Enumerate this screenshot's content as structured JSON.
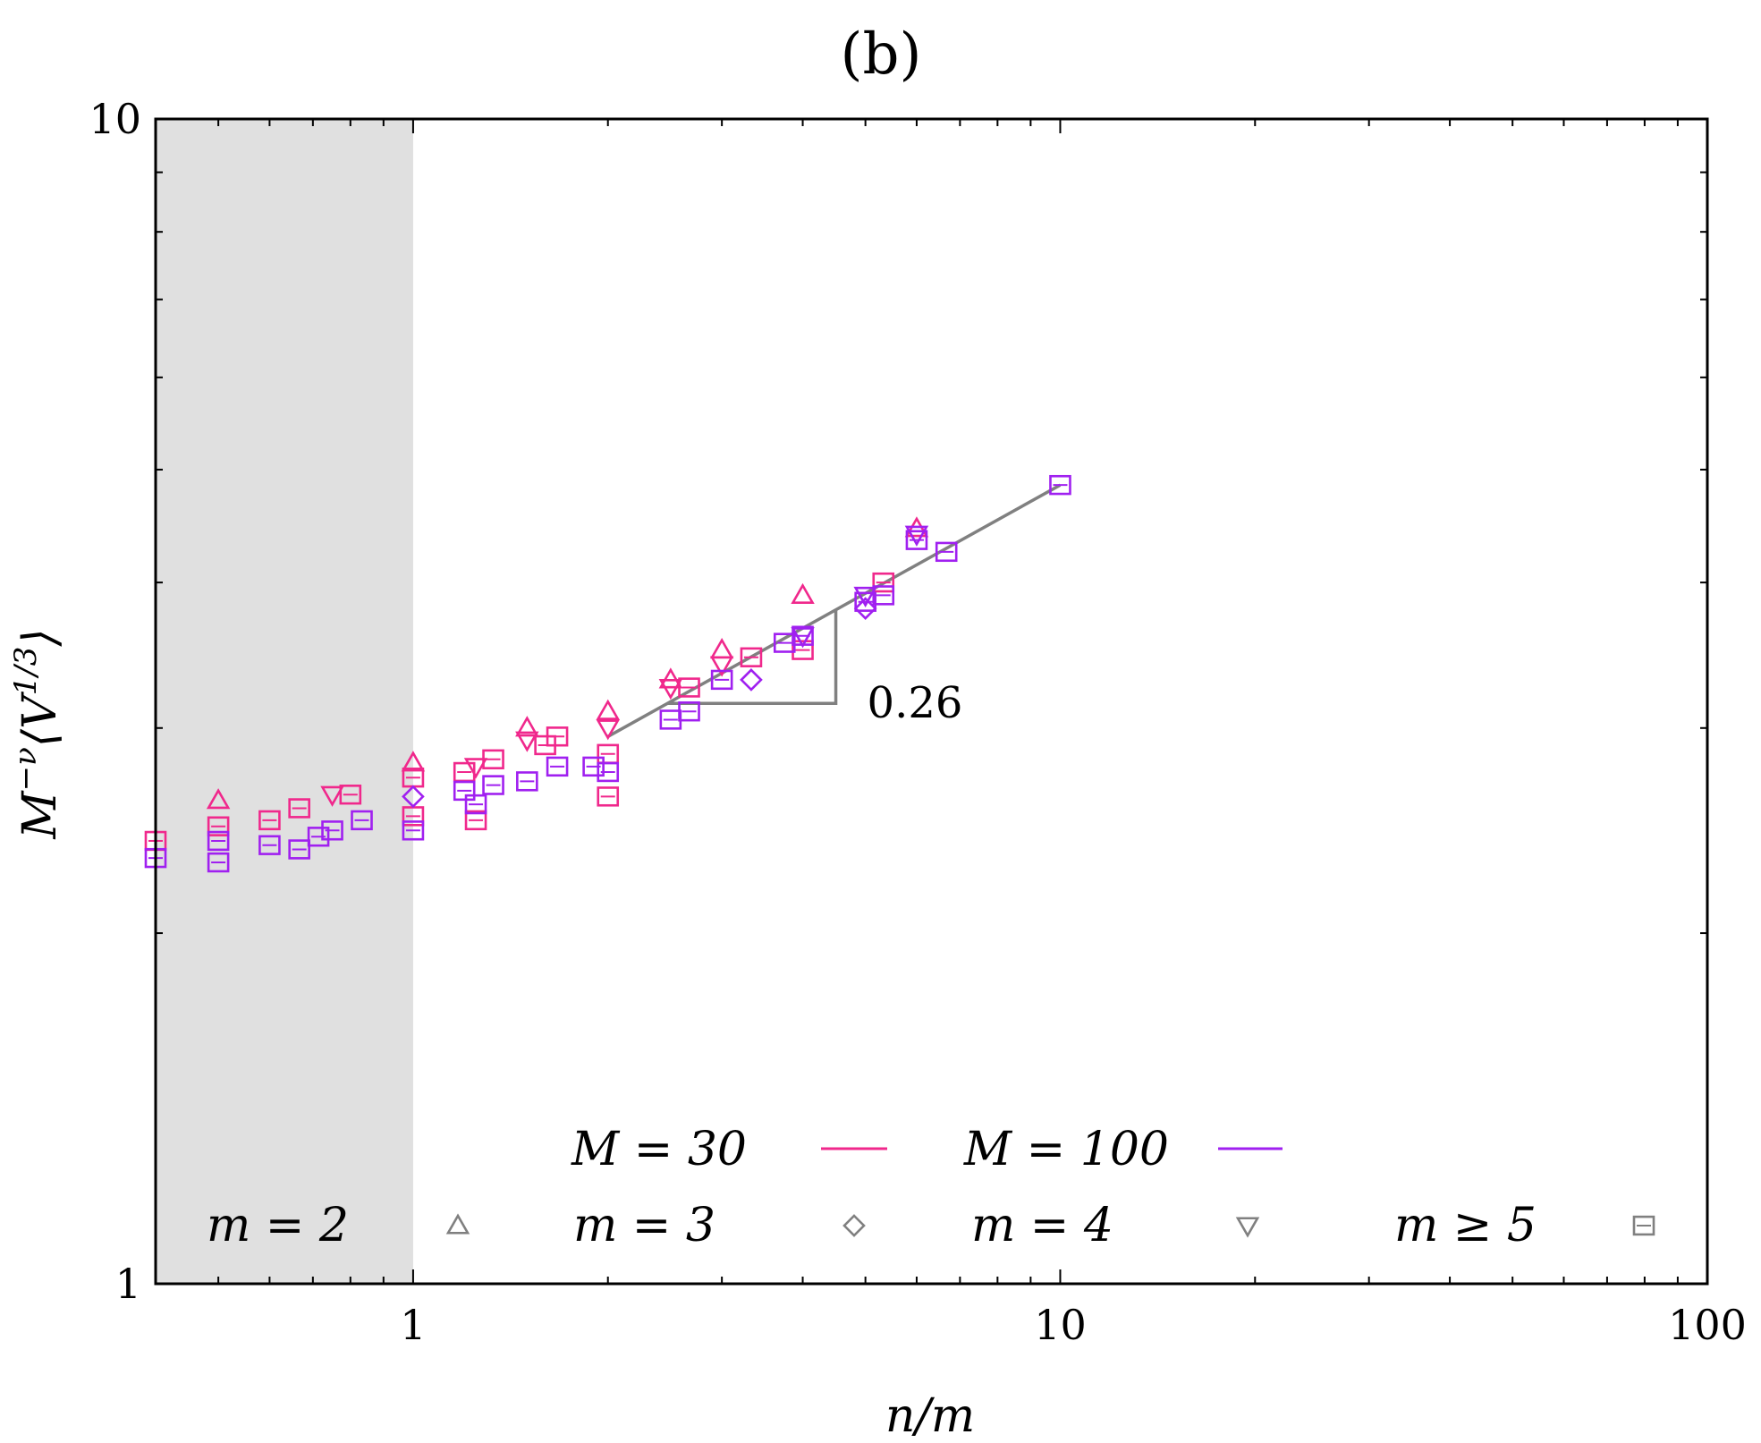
{
  "chart_data": {
    "type": "scatter",
    "panel_label": "(b)",
    "xlabel": "n/m",
    "ylabel": "M^{-ν}⟨V^{1/3}⟩",
    "ylabel_parts": {
      "base": "M",
      "exp": "−ν",
      "open": "⟨V",
      "inner_exp": "1/3",
      "close": "⟩"
    },
    "x_scale": "log",
    "y_scale": "log",
    "xlim": [
      0.4,
      100
    ],
    "ylim": [
      1,
      10
    ],
    "x_tick_labels": [
      {
        "value": 1,
        "label": "1"
      },
      {
        "value": 10,
        "label": "10"
      },
      {
        "value": 100,
        "label": "100"
      }
    ],
    "y_tick_labels": [
      {
        "value": 1,
        "label": "1"
      },
      {
        "value": 10,
        "label": "10"
      }
    ],
    "shaded_region": {
      "x": [
        0.4,
        1
      ],
      "color": "#e0e0e0"
    },
    "colors": {
      "M30": "#f0288c",
      "M100": "#a020f0",
      "fit": "#808080",
      "frame": "#000000"
    },
    "legend": {
      "line_entries": [
        {
          "label": "M = 30",
          "color": "#f0288c"
        },
        {
          "label": "M = 100",
          "color": "#a020f0"
        }
      ],
      "marker_entries": [
        {
          "label": "m = 2",
          "marker": "triangle-up"
        },
        {
          "label": "m = 3",
          "marker": "diamond"
        },
        {
          "label": "m = 4",
          "marker": "triangle-down"
        },
        {
          "label": "m ≥ 5",
          "marker": "square"
        }
      ]
    },
    "fit_line": {
      "from": [
        2.0,
        2.95
      ],
      "to": [
        10.0,
        4.85
      ],
      "slope_label": "0.26",
      "triangle_corner": [
        4.5,
        3.15
      ],
      "triangle_top": [
        4.5,
        3.75
      ]
    },
    "series": [
      {
        "name": "M = 30",
        "color": "#f0288c",
        "points": [
          {
            "x": 0.5,
            "y": 2.6,
            "marker": "triangle-up"
          },
          {
            "x": 1.0,
            "y": 2.8,
            "marker": "triangle-up"
          },
          {
            "x": 1.5,
            "y": 3.0,
            "marker": "triangle-up"
          },
          {
            "x": 2.0,
            "y": 3.1,
            "marker": "triangle-up"
          },
          {
            "x": 2.5,
            "y": 3.3,
            "marker": "triangle-up"
          },
          {
            "x": 3.0,
            "y": 3.5,
            "marker": "triangle-up"
          },
          {
            "x": 4.0,
            "y": 3.9,
            "marker": "triangle-up"
          },
          {
            "x": 6.0,
            "y": 4.45,
            "marker": "triangle-up"
          },
          {
            "x": 0.75,
            "y": 2.63,
            "marker": "triangle-down"
          },
          {
            "x": 1.25,
            "y": 2.78,
            "marker": "triangle-down"
          },
          {
            "x": 1.5,
            "y": 2.93,
            "marker": "triangle-down"
          },
          {
            "x": 2.0,
            "y": 3.0,
            "marker": "triangle-down"
          },
          {
            "x": 2.5,
            "y": 3.25,
            "marker": "triangle-down"
          },
          {
            "x": 3.0,
            "y": 3.4,
            "marker": "triangle-down"
          },
          {
            "x": 0.4,
            "y": 2.4,
            "marker": "square"
          },
          {
            "x": 0.5,
            "y": 2.47,
            "marker": "square"
          },
          {
            "x": 0.6,
            "y": 2.5,
            "marker": "square"
          },
          {
            "x": 0.667,
            "y": 2.56,
            "marker": "square"
          },
          {
            "x": 0.8,
            "y": 2.63,
            "marker": "square"
          },
          {
            "x": 1.0,
            "y": 2.72,
            "marker": "square"
          },
          {
            "x": 1.0,
            "y": 2.52,
            "marker": "square"
          },
          {
            "x": 1.2,
            "y": 2.75,
            "marker": "square"
          },
          {
            "x": 1.25,
            "y": 2.5,
            "marker": "square"
          },
          {
            "x": 1.33,
            "y": 2.82,
            "marker": "square"
          },
          {
            "x": 1.6,
            "y": 2.9,
            "marker": "square"
          },
          {
            "x": 1.67,
            "y": 2.95,
            "marker": "square"
          },
          {
            "x": 2.0,
            "y": 2.62,
            "marker": "square"
          },
          {
            "x": 2.0,
            "y": 2.85,
            "marker": "square"
          },
          {
            "x": 2.67,
            "y": 3.25,
            "marker": "square"
          },
          {
            "x": 3.33,
            "y": 3.45,
            "marker": "square"
          },
          {
            "x": 4.0,
            "y": 3.5,
            "marker": "square"
          },
          {
            "x": 5.33,
            "y": 4.0,
            "marker": "square"
          }
        ]
      },
      {
        "name": "M = 100",
        "color": "#a020f0",
        "points": [
          {
            "x": 1.0,
            "y": 2.62,
            "marker": "diamond"
          },
          {
            "x": 3.33,
            "y": 3.3,
            "marker": "diamond"
          },
          {
            "x": 5.0,
            "y": 3.8,
            "marker": "diamond"
          },
          {
            "x": 4.0,
            "y": 3.6,
            "marker": "triangle-down"
          },
          {
            "x": 5.0,
            "y": 3.9,
            "marker": "triangle-down"
          },
          {
            "x": 6.0,
            "y": 4.4,
            "marker": "triangle-down"
          },
          {
            "x": 0.4,
            "y": 2.32,
            "marker": "square"
          },
          {
            "x": 0.5,
            "y": 2.3,
            "marker": "square"
          },
          {
            "x": 0.5,
            "y": 2.4,
            "marker": "square"
          },
          {
            "x": 0.6,
            "y": 2.38,
            "marker": "square"
          },
          {
            "x": 0.667,
            "y": 2.36,
            "marker": "square"
          },
          {
            "x": 0.714,
            "y": 2.42,
            "marker": "square"
          },
          {
            "x": 0.75,
            "y": 2.45,
            "marker": "square"
          },
          {
            "x": 0.833,
            "y": 2.5,
            "marker": "square"
          },
          {
            "x": 1.0,
            "y": 2.45,
            "marker": "square"
          },
          {
            "x": 1.2,
            "y": 2.65,
            "marker": "square"
          },
          {
            "x": 1.25,
            "y": 2.58,
            "marker": "square"
          },
          {
            "x": 1.33,
            "y": 2.68,
            "marker": "square"
          },
          {
            "x": 1.5,
            "y": 2.7,
            "marker": "square"
          },
          {
            "x": 1.67,
            "y": 2.78,
            "marker": "square"
          },
          {
            "x": 1.9,
            "y": 2.78,
            "marker": "square"
          },
          {
            "x": 2.0,
            "y": 2.75,
            "marker": "square"
          },
          {
            "x": 2.5,
            "y": 3.05,
            "marker": "square"
          },
          {
            "x": 2.67,
            "y": 3.1,
            "marker": "square"
          },
          {
            "x": 3.0,
            "y": 3.3,
            "marker": "square"
          },
          {
            "x": 3.75,
            "y": 3.55,
            "marker": "square"
          },
          {
            "x": 4.0,
            "y": 3.6,
            "marker": "square"
          },
          {
            "x": 5.0,
            "y": 3.85,
            "marker": "square"
          },
          {
            "x": 5.33,
            "y": 3.9,
            "marker": "square"
          },
          {
            "x": 6.0,
            "y": 4.35,
            "marker": "square"
          },
          {
            "x": 6.67,
            "y": 4.25,
            "marker": "square"
          },
          {
            "x": 10.0,
            "y": 4.85,
            "marker": "square"
          }
        ]
      }
    ]
  }
}
